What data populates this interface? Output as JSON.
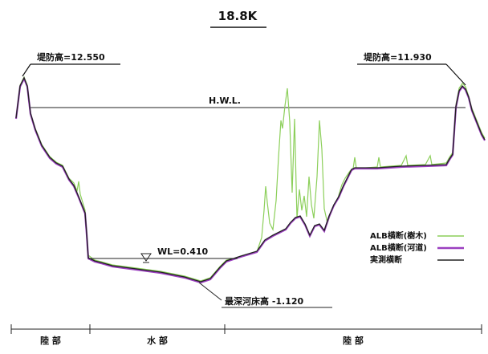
{
  "title": "18.8K",
  "labels": {
    "left_bank_height": "堤防高=12.550",
    "right_bank_height": "堤防高=11.930",
    "hwl": "H.W.L.",
    "water_level": "WL=0.410",
    "deepest_bed": "最深河床高 -1.120"
  },
  "legend": [
    {
      "label": "ALB横断(樹木)",
      "color": "#8ccf5a"
    },
    {
      "label": "ALB横断(河道)",
      "color": "#9b3fc0"
    },
    {
      "label": "実測横断",
      "color": "#222222"
    }
  ],
  "zones": [
    {
      "label": "陸 部"
    },
    {
      "label": "水 部"
    },
    {
      "label": "陸 部"
    }
  ],
  "colors": {
    "tree": "#8ccf5a",
    "channel": "#9b3fc0",
    "survey": "#222222"
  }
}
